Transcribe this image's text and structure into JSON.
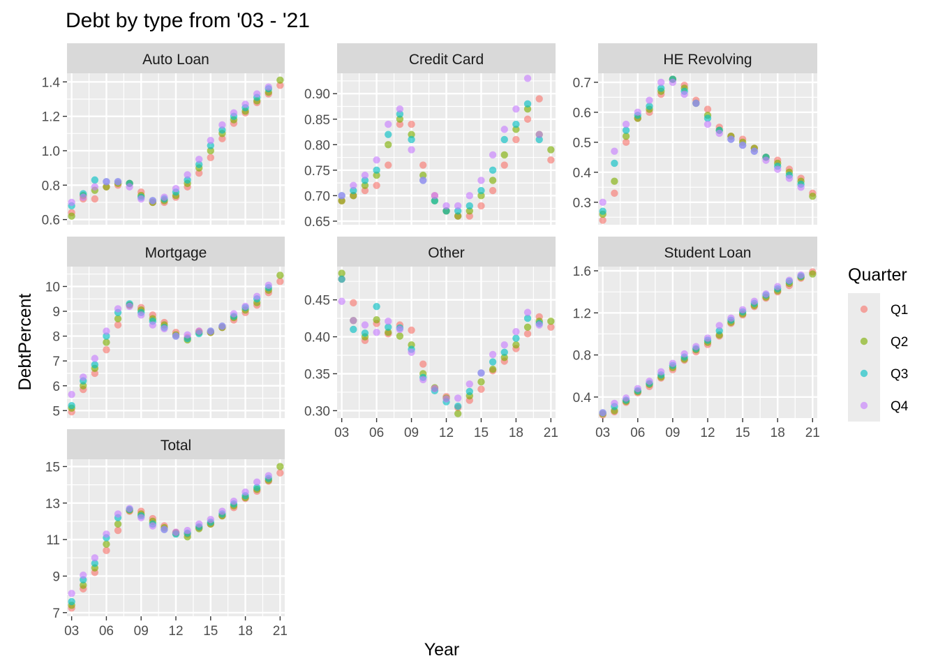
{
  "chart_data": {
    "type": "scatter",
    "title": "Debt by type from '03 - '21",
    "xlabel": "Year",
    "ylabel": "DebtPercent",
    "legend": {
      "title": "Quarter",
      "position": "right",
      "entries": [
        {
          "name": "Q1",
          "color": "#F8766D"
        },
        {
          "name": "Q2",
          "color": "#7CAE00"
        },
        {
          "name": "Q3",
          "color": "#00BFC4"
        },
        {
          "name": "Q4",
          "color": "#C77CFF"
        }
      ]
    },
    "x": [
      3,
      4,
      5,
      6,
      7,
      8,
      9,
      10,
      11,
      12,
      13,
      14,
      15,
      16,
      17,
      18,
      19,
      20,
      21
    ],
    "xlim": [
      2.6,
      21.4
    ],
    "x_ticks": [
      3,
      6,
      9,
      12,
      15,
      18,
      21
    ],
    "x_tick_labels": [
      "03",
      "06",
      "09",
      "12",
      "15",
      "18",
      "21"
    ],
    "panels": [
      {
        "name": "Auto Loan",
        "ylim": [
          0.57,
          1.45
        ],
        "y_ticks": [
          0.6,
          0.8,
          1.0,
          1.2,
          1.4
        ],
        "y_tick_labels": [
          "0.6",
          "0.8",
          "1.0",
          "1.2",
          "1.4"
        ],
        "series": [
          {
            "name": "Q1",
            "values": [
              0.64,
              0.72,
              0.72,
              0.79,
              0.8,
              0.81,
              0.76,
              0.7,
              0.7,
              0.73,
              0.79,
              0.87,
              0.96,
              1.07,
              1.16,
              1.22,
              1.28,
              1.33,
              1.38
            ]
          },
          {
            "name": "Q2",
            "values": [
              0.62,
              0.74,
              0.77,
              0.79,
              0.81,
              0.81,
              0.74,
              0.7,
              0.71,
              0.74,
              0.81,
              0.9,
              1.0,
              1.1,
              1.18,
              1.23,
              1.29,
              1.34,
              1.41
            ]
          },
          {
            "name": "Q3",
            "values": [
              0.68,
              0.75,
              0.83,
              0.82,
              0.82,
              0.81,
              0.73,
              0.71,
              0.72,
              0.76,
              0.83,
              0.92,
              1.03,
              1.12,
              1.2,
              1.25,
              1.31,
              1.36,
              null
            ]
          },
          {
            "name": "Q4",
            "values": [
              0.7,
              0.73,
              0.79,
              0.82,
              0.82,
              0.79,
              0.72,
              0.71,
              0.73,
              0.78,
              0.86,
              0.95,
              1.06,
              1.15,
              1.22,
              1.27,
              1.33,
              1.37,
              null
            ]
          }
        ]
      },
      {
        "name": "Credit Card",
        "ylim": [
          0.643,
          0.94
        ],
        "y_ticks": [
          0.65,
          0.7,
          0.75,
          0.8,
          0.85,
          0.9
        ],
        "y_tick_labels": [
          "0.65",
          "0.70",
          "0.75",
          "0.80",
          "0.85",
          "0.90"
        ],
        "series": [
          {
            "name": "Q1",
            "values": [
              0.69,
              0.7,
              0.71,
              0.72,
              0.76,
              0.84,
              0.84,
              0.76,
              0.7,
              0.67,
              0.66,
              0.66,
              0.68,
              0.71,
              0.76,
              0.81,
              0.85,
              0.89,
              0.77
            ]
          },
          {
            "name": "Q2",
            "values": [
              0.69,
              0.7,
              0.72,
              0.74,
              0.8,
              0.85,
              0.82,
              0.74,
              0.69,
              0.67,
              0.66,
              0.67,
              0.7,
              0.73,
              0.78,
              0.83,
              0.87,
              0.82,
              0.79
            ]
          },
          {
            "name": "Q3",
            "values": [
              0.7,
              0.71,
              0.73,
              0.75,
              0.82,
              0.86,
              0.81,
              0.73,
              0.69,
              0.67,
              0.67,
              0.68,
              0.71,
              0.75,
              0.81,
              0.84,
              0.88,
              0.81,
              null
            ]
          },
          {
            "name": "Q4",
            "values": [
              0.7,
              0.72,
              0.74,
              0.77,
              0.84,
              0.87,
              0.79,
              0.73,
              0.7,
              0.68,
              0.68,
              0.7,
              0.73,
              0.78,
              0.83,
              0.87,
              0.93,
              0.82,
              null
            ]
          }
        ]
      },
      {
        "name": "HE Revolving",
        "ylim": [
          0.225,
          0.73
        ],
        "y_ticks": [
          0.3,
          0.4,
          0.5,
          0.6,
          0.7
        ],
        "y_tick_labels": [
          "0.3",
          "0.4",
          "0.5",
          "0.6",
          "0.7"
        ],
        "series": [
          {
            "name": "Q1",
            "values": [
              0.24,
              0.33,
              0.5,
              0.58,
              0.6,
              0.66,
              0.71,
              0.69,
              0.64,
              0.61,
              0.55,
              0.52,
              0.51,
              0.48,
              0.45,
              0.44,
              0.41,
              0.38,
              0.33
            ]
          },
          {
            "name": "Q2",
            "values": [
              0.26,
              0.37,
              0.52,
              0.58,
              0.61,
              0.67,
              0.71,
              0.68,
              0.63,
              0.59,
              0.54,
              0.52,
              0.5,
              0.48,
              0.45,
              0.43,
              0.4,
              0.37,
              0.32
            ]
          },
          {
            "name": "Q3",
            "values": [
              0.27,
              0.43,
              0.54,
              0.59,
              0.62,
              0.68,
              0.71,
              0.67,
              0.63,
              0.58,
              0.54,
              0.51,
              0.49,
              0.47,
              0.45,
              0.42,
              0.39,
              0.36,
              null
            ]
          },
          {
            "name": "Q4",
            "values": [
              0.3,
              0.47,
              0.56,
              0.6,
              0.64,
              0.7,
              0.7,
              0.66,
              0.63,
              0.56,
              0.53,
              0.51,
              0.49,
              0.47,
              0.44,
              0.41,
              0.38,
              0.35,
              null
            ]
          }
        ]
      },
      {
        "name": "Mortgage",
        "ylim": [
          4.7,
          10.8
        ],
        "y_ticks": [
          5,
          6,
          7,
          8,
          9,
          10
        ],
        "y_tick_labels": [
          "5",
          "6",
          "7",
          "8",
          "9",
          "10"
        ],
        "series": [
          {
            "name": "Q1",
            "values": [
              4.95,
              5.85,
              6.5,
              7.45,
              8.45,
              9.25,
              9.15,
              8.85,
              8.55,
              8.15,
              7.95,
              8.2,
              8.15,
              8.35,
              8.65,
              8.95,
              9.25,
              9.75,
              10.2
            ]
          },
          {
            "name": "Q2",
            "values": [
              5.1,
              6.0,
              6.7,
              7.75,
              8.7,
              9.25,
              9.05,
              8.7,
              8.45,
              8.05,
              7.85,
              8.15,
              8.15,
              8.35,
              8.75,
              9.05,
              9.35,
              9.85,
              10.45
            ]
          },
          {
            "name": "Q3",
            "values": [
              5.2,
              6.2,
              6.85,
              8.0,
              8.95,
              9.3,
              8.95,
              8.6,
              8.35,
              8.0,
              7.9,
              8.1,
              8.2,
              8.4,
              8.8,
              9.15,
              9.5,
              9.95,
              null
            ]
          },
          {
            "name": "Q4",
            "values": [
              5.65,
              6.35,
              7.1,
              8.2,
              9.1,
              9.2,
              8.85,
              8.45,
              8.3,
              8.0,
              8.05,
              8.2,
              8.2,
              8.4,
              8.9,
              9.2,
              9.6,
              10.05,
              null
            ]
          }
        ]
      },
      {
        "name": "Other",
        "ylim": [
          0.29,
          0.495
        ],
        "y_ticks": [
          0.3,
          0.35,
          0.4,
          0.45
        ],
        "y_tick_labels": [
          "0.30",
          "0.35",
          "0.40",
          "0.45"
        ],
        "series": [
          {
            "name": "Q1",
            "values": [
              0.478,
              0.446,
              0.395,
              0.418,
              0.404,
              0.416,
              0.409,
              0.363,
              0.33,
              0.319,
              0.304,
              0.314,
              0.329,
              0.354,
              0.367,
              0.384,
              0.404,
              0.427,
              0.413
            ]
          },
          {
            "name": "Q2",
            "values": [
              0.486,
              0.422,
              0.4,
              0.423,
              0.406,
              0.401,
              0.389,
              0.35,
              0.331,
              0.317,
              0.296,
              0.32,
              0.339,
              0.356,
              0.372,
              0.389,
              0.413,
              0.421,
              0.421
            ]
          },
          {
            "name": "Q3",
            "values": [
              0.478,
              0.41,
              0.405,
              0.441,
              0.413,
              0.412,
              0.383,
              0.345,
              0.327,
              0.312,
              0.306,
              0.326,
              0.351,
              0.366,
              0.379,
              0.398,
              0.425,
              0.418,
              null
            ]
          },
          {
            "name": "Q4",
            "values": [
              0.448,
              0.422,
              0.416,
              0.406,
              0.421,
              0.41,
              0.379,
              0.342,
              0.33,
              0.316,
              0.317,
              0.336,
              0.351,
              0.376,
              0.389,
              0.407,
              0.433,
              0.416,
              null
            ]
          }
        ]
      },
      {
        "name": "Student Loan",
        "ylim": [
          0.2,
          1.64
        ],
        "y_ticks": [
          0.4,
          0.8,
          1.2,
          1.6
        ],
        "y_tick_labels": [
          "0.4",
          "0.8",
          "1.2",
          "1.6"
        ],
        "series": [
          {
            "name": "Q1",
            "values": [
              0.23,
              0.26,
              0.35,
              0.44,
              0.5,
              0.58,
              0.66,
              0.75,
              0.83,
              0.9,
              0.98,
              1.1,
              1.18,
              1.26,
              1.34,
              1.4,
              1.46,
              1.53,
              1.59
            ]
          },
          {
            "name": "Q2",
            "values": [
              0.24,
              0.27,
              0.36,
              0.45,
              0.52,
              0.59,
              0.68,
              0.76,
              0.85,
              0.92,
              0.99,
              1.11,
              1.19,
              1.27,
              1.35,
              1.41,
              1.48,
              1.54,
              1.57
            ]
          },
          {
            "name": "Q3",
            "values": [
              0.25,
              0.31,
              0.37,
              0.46,
              0.53,
              0.61,
              0.7,
              0.78,
              0.86,
              0.94,
              1.03,
              1.13,
              1.21,
              1.29,
              1.37,
              1.43,
              1.5,
              1.55,
              null
            ]
          },
          {
            "name": "Q4",
            "values": [
              0.25,
              0.34,
              0.39,
              0.48,
              0.55,
              0.64,
              0.72,
              0.81,
              0.88,
              0.96,
              1.08,
              1.15,
              1.23,
              1.31,
              1.38,
              1.45,
              1.51,
              1.56,
              null
            ]
          }
        ]
      },
      {
        "name": "Total",
        "ylim": [
          6.8,
          15.4
        ],
        "y_ticks": [
          7,
          9,
          11,
          13,
          15
        ],
        "y_tick_labels": [
          "7",
          "9",
          "11",
          "13",
          "15"
        ],
        "series": [
          {
            "name": "Q1",
            "values": [
              7.25,
              8.3,
              9.2,
              10.4,
              11.5,
              12.55,
              12.55,
              12.15,
              11.75,
              11.4,
              11.3,
              11.65,
              11.85,
              12.3,
              12.75,
              13.25,
              13.65,
              14.2,
              14.65
            ]
          },
          {
            "name": "Q2",
            "values": [
              7.4,
              8.5,
              9.45,
              10.75,
              11.85,
              12.6,
              12.4,
              12.0,
              11.65,
              11.35,
              11.15,
              11.6,
              11.85,
              12.3,
              12.85,
              13.3,
              13.75,
              14.25,
              15.0
            ]
          },
          {
            "name": "Q3",
            "values": [
              7.6,
              8.8,
              9.7,
              11.1,
              12.2,
              12.65,
              12.3,
              11.85,
              11.55,
              11.3,
              11.35,
              11.7,
              11.95,
              12.4,
              12.95,
              13.4,
              13.85,
              14.35,
              null
            ]
          },
          {
            "name": "Q4",
            "values": [
              8.05,
              9.05,
              10.0,
              11.3,
              12.4,
              12.7,
              12.2,
              11.75,
              11.55,
              11.4,
              11.5,
              11.85,
              12.1,
              12.55,
              13.1,
              13.6,
              14.15,
              14.5,
              null
            ]
          }
        ]
      }
    ]
  }
}
